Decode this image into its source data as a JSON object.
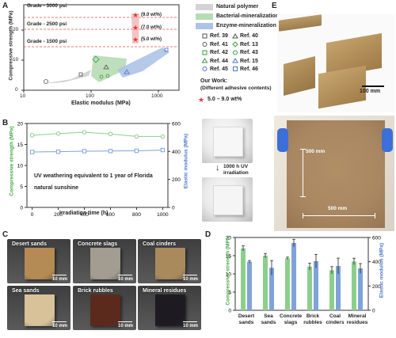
{
  "panels": {
    "A": "A",
    "B": "B",
    "C": "C",
    "D": "D",
    "E": "E"
  },
  "panel_a": {
    "grades": [
      "Grade - 3000 psi",
      "Grade - 2500 psi",
      "Grade - 1500 psi"
    ],
    "legend_regions": [
      "Natural polymer",
      "Bacterial-mineralization",
      "Enzyme-mineralization"
    ],
    "legend_refs": [
      "Ref. 39",
      "Ref. 40",
      "Ref. 41",
      "Ref. 13",
      "Ref. 42",
      "Ref. 43",
      "Ref. 44",
      "Ref. 15",
      "Ref. 45",
      "Ref. 46"
    ],
    "our_work_title": "Our Work:",
    "our_work_sub": "(Different adhesive contents)",
    "our_work_range": "5.0 – 9.0 wt%",
    "point_labels": [
      "(9.0 wt%)",
      "(7.0 wt%)",
      "(5.0 wt%)"
    ],
    "ylabel": "Compressive strength (MPa)",
    "xlabel": "Elastic modulus (MPa)",
    "yticks": [
      "0",
      "10",
      "20"
    ],
    "xticks": [
      "10",
      "100",
      "1000"
    ],
    "colors": {
      "natural": "#c8c8c8",
      "bacterial": "#b7dcb4",
      "enzyme": "#adc3e6",
      "star": "#e23a3a",
      "grade": "#e45050"
    }
  },
  "chart_data": [
    {
      "type": "line",
      "title": "",
      "caption": "UV weathering equivalent to 1 year of Florida natural sunshine",
      "xlabel": "Irradiation time (h)",
      "ylabel": "Compressive strength (MPa)",
      "y2label": "Elastic modulus (MPa)",
      "x": [
        0,
        200,
        400,
        600,
        800,
        1000
      ],
      "xticks": [
        "0",
        "200",
        "400",
        "600",
        "800",
        "1000"
      ],
      "yticks": [
        "0",
        "5",
        "10",
        "15",
        "20"
      ],
      "y2ticks": [
        "0",
        "200",
        "400",
        "600"
      ],
      "ylim": [
        0,
        20
      ],
      "y2lim": [
        0,
        600
      ],
      "series": [
        {
          "name": "Compressive strength",
          "color": "#8ccf8c",
          "values": [
            17.2,
            17.6,
            17.9,
            17.5,
            16.9,
            16.9
          ]
        },
        {
          "name": "Elastic modulus",
          "color": "#7fa3d9",
          "axis": "right",
          "values": [
            396,
            398,
            402,
            403,
            405,
            410
          ]
        }
      ],
      "photo_caption": "1000 h UV irradiation"
    },
    {
      "type": "bar",
      "title": "",
      "categories": [
        "Desert sands",
        "Sea sands",
        "Concrete slags",
        "Brick rubbles",
        "Coal cinders",
        "Mineral residues"
      ],
      "ylabel": "Compressive strength (MPa)",
      "y2label": "Elastic modulus (MPa)",
      "yticks": [
        "0",
        "5",
        "10",
        "15",
        "20"
      ],
      "y2ticks": [
        "0",
        "200",
        "400",
        "600"
      ],
      "ylim": [
        0,
        20
      ],
      "y2lim": [
        0,
        600
      ],
      "series": [
        {
          "name": "Compressive strength",
          "color": "#8ccf8c",
          "values": [
            17.0,
            15.0,
            14.3,
            12.0,
            11.0,
            13.4
          ],
          "errors": [
            0.7,
            0.6,
            0.3,
            0.9,
            1.0,
            0.9
          ]
        },
        {
          "name": "Elastic modulus",
          "color": "#7fa3d9",
          "axis": "right",
          "values": [
            400,
            350,
            555,
            405,
            365,
            345
          ],
          "errors": [
            10,
            60,
            30,
            55,
            65,
            40
          ]
        }
      ]
    }
  ],
  "panel_c": {
    "materials": [
      {
        "label": "Desert sands",
        "color": "#b48a55"
      },
      {
        "label": "Concrete slags",
        "color": "#a29c91"
      },
      {
        "label": "Coal cinders",
        "color": "#a98a5d"
      },
      {
        "label": "Sea sands",
        "color": "#d8c29a"
      },
      {
        "label": "Brick rubbles",
        "color": "#5b2a1d"
      },
      {
        "label": "Mineral residues",
        "color": "#1d1a22"
      }
    ],
    "scale": "10 mm"
  },
  "panel_e": {
    "scale_top": "100 mm",
    "dim_h": "500 mm",
    "dim_w": "500 mm"
  }
}
